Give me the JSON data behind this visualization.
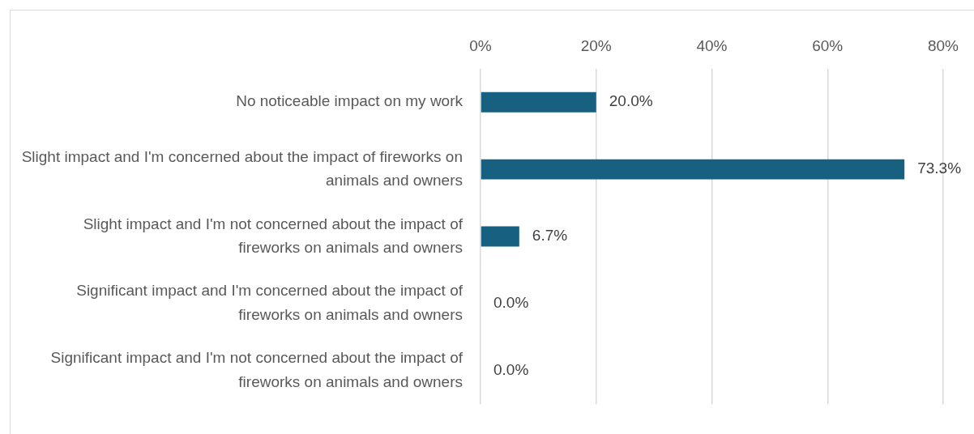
{
  "chart_data": {
    "type": "bar",
    "orientation": "horizontal",
    "categories": [
      "No noticeable impact on my work",
      "Slight impact and I'm concerned about the impact of fireworks on animals and owners",
      "Slight impact and I'm not concerned about the impact of fireworks on animals and owners",
      "Significant impact and I'm concerned about the impact of fireworks on animals and owners",
      "Significant impact and I'm not concerned about the impact of fireworks on animals and owners"
    ],
    "values": [
      20.0,
      73.3,
      6.7,
      0.0,
      0.0
    ],
    "value_labels": [
      "20.0%",
      "73.3%",
      "6.7%",
      "0.0%",
      "0.0%"
    ],
    "color": "#17607f",
    "xlim": [
      0,
      80
    ],
    "xticks": [
      {
        "value": 0,
        "label": "0%"
      },
      {
        "value": 20,
        "label": "20%"
      },
      {
        "value": 40,
        "label": "40%"
      },
      {
        "value": 60,
        "label": "60%"
      },
      {
        "value": 80,
        "label": "80%"
      }
    ],
    "grid": "x",
    "legend": false
  }
}
